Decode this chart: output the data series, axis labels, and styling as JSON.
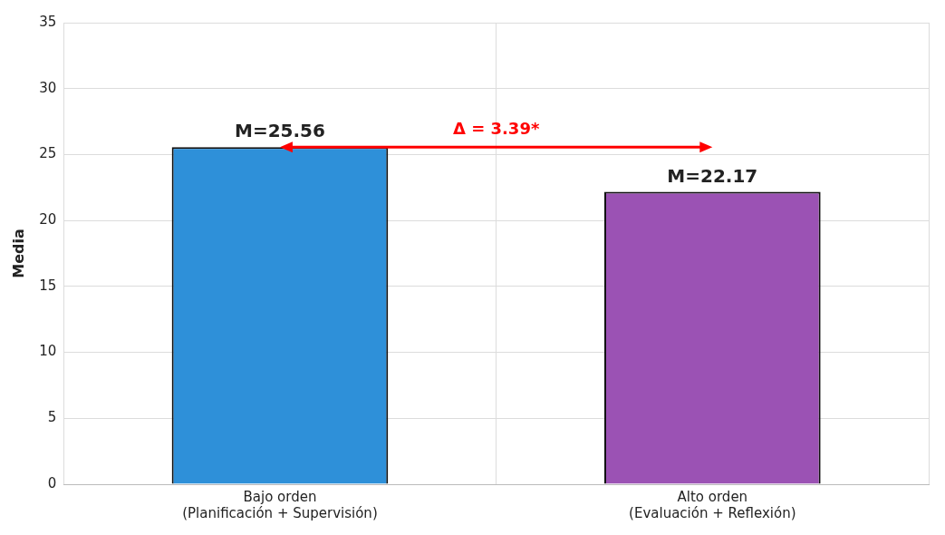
{
  "chart_data": {
    "type": "bar",
    "ylabel": "Media",
    "categories": [
      "Bajo orden\n(Planificación + Supervisión)",
      "Alto orden\n(Evaluación + Reflexión)"
    ],
    "values": [
      25.56,
      22.17
    ],
    "colors": [
      "#2e90d9",
      "#9b52b4"
    ],
    "value_labels": [
      "M=25.56",
      "M=22.17"
    ],
    "annotations": [
      "Δ = 3.39*"
    ],
    "ylim": [
      0,
      35
    ],
    "yticks": [
      0,
      5,
      10,
      15,
      20,
      25,
      30,
      35
    ],
    "grid": true
  }
}
